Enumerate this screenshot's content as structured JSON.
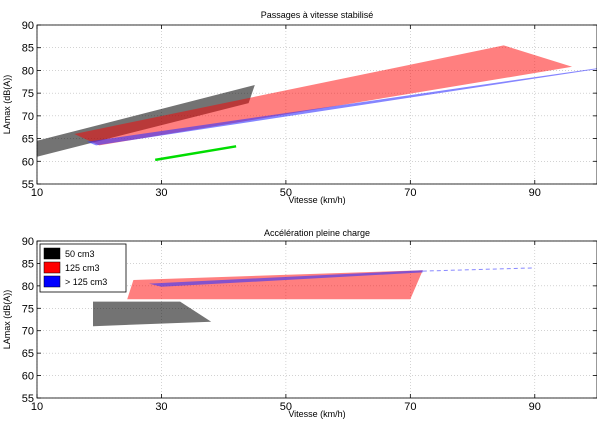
{
  "chart_data": [
    {
      "type": "area",
      "title": "Passages à vitesse stabilisé",
      "xlabel": "Vitesse (km/h)",
      "ylabel": "LAmax (dB(A))",
      "xlim": [
        10,
        100
      ],
      "ylim": [
        55,
        90
      ],
      "xticks": [
        10,
        30,
        50,
        70,
        90
      ],
      "yticks": [
        55,
        60,
        65,
        70,
        75,
        80,
        85,
        90
      ],
      "grid": true,
      "regions": [
        {
          "series": "50 cm3",
          "color": "#000000",
          "opacity": 0.55,
          "points": [
            [
              10,
              64.5
            ],
            [
              45,
              76.8
            ],
            [
              44,
              72.8
            ],
            [
              10,
              61
            ]
          ]
        },
        {
          "series": "125 cm3",
          "color": "#ff0000",
          "opacity": 0.5,
          "points": [
            [
              16,
              66
            ],
            [
              85,
              85.5
            ],
            [
              96,
              80.8
            ],
            [
              20,
              63.5
            ]
          ]
        },
        {
          "series": "> 125 cm3",
          "color": "#3333ff",
          "opacity": 0.6,
          "points": [
            [
              18,
              64.3
            ],
            [
              100,
              80.5
            ],
            [
              100,
              80.3
            ],
            [
              19.5,
              63.5
            ]
          ]
        }
      ],
      "lines": [
        {
          "color": "#00dd00",
          "points": [
            [
              29,
              60.3
            ],
            [
              42,
              63.3
            ]
          ]
        }
      ]
    },
    {
      "type": "area",
      "title": "Accélération pleine charge",
      "xlabel": "Vitesse (km/h)",
      "ylabel": "LAmax (dB(A))",
      "xlim": [
        10,
        100
      ],
      "ylim": [
        55,
        90
      ],
      "xticks": [
        10,
        30,
        50,
        70,
        90
      ],
      "yticks": [
        55,
        60,
        65,
        70,
        75,
        80,
        85,
        90
      ],
      "grid": true,
      "legend": {
        "position": "top-left",
        "entries": [
          {
            "label": "50 cm3",
            "color": "#000000"
          },
          {
            "label": "125 cm3",
            "color": "#ff0000"
          },
          {
            "label": "> 125 cm3",
            "color": "#0000ff"
          }
        ]
      },
      "regions": [
        {
          "series": "50 cm3",
          "color": "#000000",
          "opacity": 0.55,
          "points": [
            [
              19,
              76.5
            ],
            [
              33,
              76.5
            ],
            [
              38,
              72
            ],
            [
              19,
              71
            ]
          ]
        },
        {
          "series": "125 cm3",
          "color": "#ff0000",
          "opacity": 0.5,
          "points": [
            [
              25.5,
              81.3
            ],
            [
              72,
              83.5
            ],
            [
              70,
              77
            ],
            [
              24.5,
              77
            ]
          ]
        },
        {
          "series": "> 125 cm3",
          "color": "#3333ff",
          "opacity": 0.6,
          "points": [
            [
              28,
              80.5
            ],
            [
              72,
              83.5
            ],
            [
              72,
              83
            ],
            [
              30,
              79.8
            ]
          ]
        }
      ],
      "lines": [
        {
          "color": "#8888ff",
          "dash": true,
          "points": [
            [
              72,
              83.3
            ],
            [
              90,
              84
            ]
          ]
        }
      ]
    }
  ]
}
